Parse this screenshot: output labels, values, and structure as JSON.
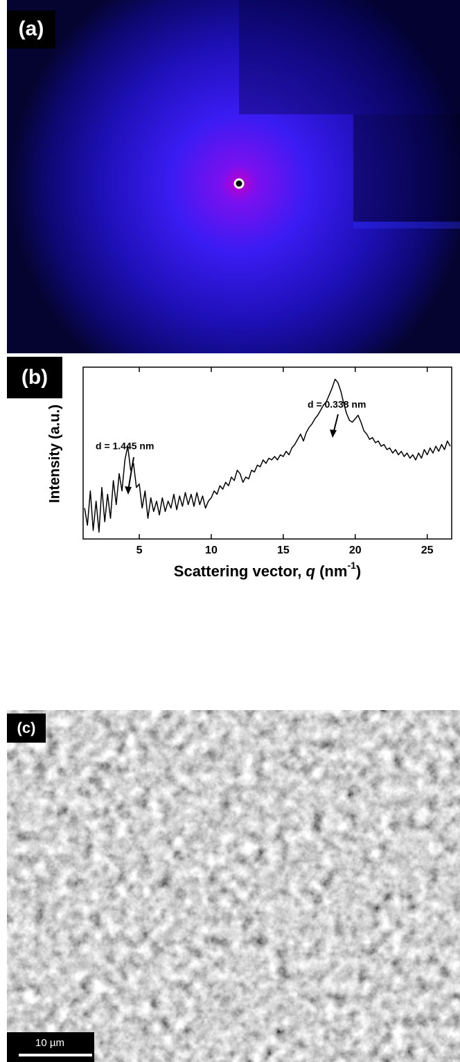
{
  "panel_a": {
    "label": "(a)"
  },
  "chart_data": {
    "type": "line",
    "panel_label": "(b)",
    "ylabel": "Intensity (a.u.)",
    "xlabel_parts": [
      "Scattering vector, ",
      "q",
      " (nm",
      "-1",
      ")"
    ],
    "annotations": [
      "d = 1.445 nm",
      "d = 0.338 nm"
    ],
    "color": "#000000",
    "xlim": [
      1.1,
      26.7
    ],
    "ylim": [
      0,
      100
    ],
    "xticks": [
      5,
      10,
      15,
      20,
      25
    ],
    "x": [
      1.2,
      1.4,
      1.6,
      1.8,
      2.0,
      2.2,
      2.4,
      2.6,
      2.8,
      3.0,
      3.2,
      3.4,
      3.6,
      3.8,
      4.0,
      4.2,
      4.4,
      4.6,
      4.8,
      5.0,
      5.2,
      5.4,
      5.6,
      5.8,
      6.0,
      6.2,
      6.4,
      6.6,
      6.8,
      7.0,
      7.2,
      7.4,
      7.6,
      7.8,
      8.0,
      8.2,
      8.4,
      8.6,
      8.8,
      9.0,
      9.2,
      9.4,
      9.6,
      9.8,
      10.0,
      10.2,
      10.4,
      10.6,
      10.8,
      11.0,
      11.2,
      11.4,
      11.6,
      11.8,
      12.0,
      12.2,
      12.4,
      12.6,
      12.8,
      13.0,
      13.2,
      13.4,
      13.6,
      13.8,
      14.0,
      14.2,
      14.4,
      14.6,
      14.8,
      15.0,
      15.2,
      15.4,
      15.6,
      15.8,
      16.0,
      16.2,
      16.4,
      16.6,
      16.8,
      17.0,
      17.2,
      17.4,
      17.6,
      17.8,
      18.0,
      18.2,
      18.4,
      18.6,
      18.8,
      19.0,
      19.2,
      19.4,
      19.6,
      19.8,
      20.0,
      20.2,
      20.4,
      20.6,
      20.8,
      21.0,
      21.2,
      21.4,
      21.6,
      21.8,
      22.0,
      22.2,
      22.4,
      22.6,
      22.8,
      23.0,
      23.2,
      23.4,
      23.6,
      23.8,
      24.0,
      24.2,
      24.4,
      24.6,
      24.8,
      25.0,
      25.2,
      25.4,
      25.6,
      25.8,
      26.0,
      26.2,
      26.4,
      26.6
    ],
    "values": [
      18,
      8,
      28,
      5,
      22,
      4,
      30,
      10,
      26,
      12,
      34,
      20,
      38,
      28,
      46,
      54,
      40,
      44,
      30,
      32,
      18,
      28,
      12,
      24,
      16,
      22,
      14,
      24,
      16,
      22,
      18,
      26,
      17,
      25,
      19,
      27,
      20,
      26,
      19,
      27,
      20,
      25,
      18,
      22,
      24,
      28,
      26,
      31,
      29,
      33,
      31,
      36,
      34,
      40,
      38,
      33,
      36,
      35,
      40,
      39,
      43,
      42,
      46,
      44,
      47,
      46,
      48,
      46,
      49,
      48,
      51,
      49,
      53,
      55,
      58,
      61,
      57,
      62,
      65,
      67,
      70,
      72,
      75,
      78,
      80,
      84,
      88,
      93,
      91,
      86,
      79,
      73,
      69,
      68,
      70,
      72,
      68,
      63,
      61,
      58,
      59,
      56,
      57,
      54,
      55,
      52,
      53,
      50,
      52,
      49,
      51,
      48,
      50,
      47,
      49,
      46,
      50,
      47,
      52,
      49,
      53,
      50,
      54,
      51,
      55,
      52,
      57,
      54
    ]
  },
  "panel_c": {
    "label": "(c)",
    "scale_bar": "10 µm"
  }
}
